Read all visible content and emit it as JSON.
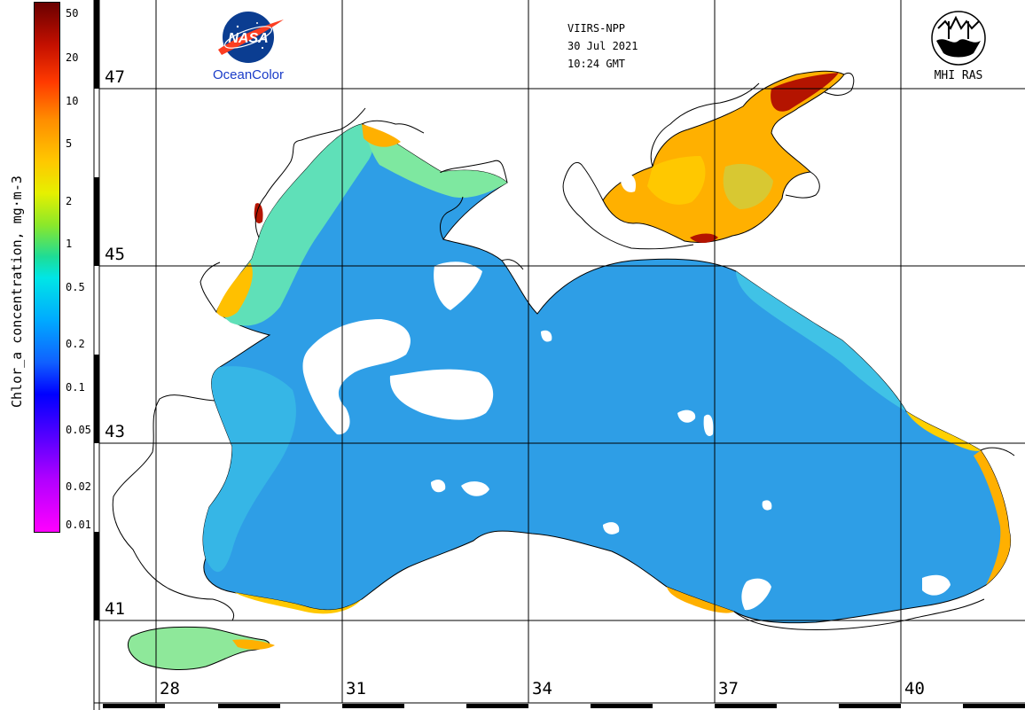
{
  "header": {
    "sensor": "VIIRS-NPP",
    "date": "30 Jul 2021",
    "time": "10:24 GMT"
  },
  "logos": {
    "left": {
      "name": "NASA",
      "caption": "OceanColor"
    },
    "right": {
      "name": "MHI RAS",
      "caption": "MHI RAS"
    }
  },
  "colorbar": {
    "label": "Chlor_a concentration, mg·m-3",
    "ticks": [
      "50",
      "20",
      "10",
      "5",
      "2",
      "1",
      "0.5",
      "0.2",
      "0.1",
      "0.05",
      "0.02",
      "0.01"
    ],
    "min": 0.01,
    "max": 50,
    "scale": "log",
    "colors": {
      "high": "#6a0000",
      "mid": "#00e6e6",
      "low": "#ff00ff"
    }
  },
  "map": {
    "latitude_labels": [
      "47",
      "45",
      "43",
      "41"
    ],
    "longitude_labels": [
      "28",
      "31",
      "34",
      "37",
      "40"
    ],
    "grid": true,
    "colors": {
      "land": "#ffffff",
      "coast": "#000000",
      "open_sea": "#2e9ee6",
      "shelf": "#00d2e6",
      "coastal_bloom": "#ffb000",
      "estuary": "#b41400"
    }
  }
}
